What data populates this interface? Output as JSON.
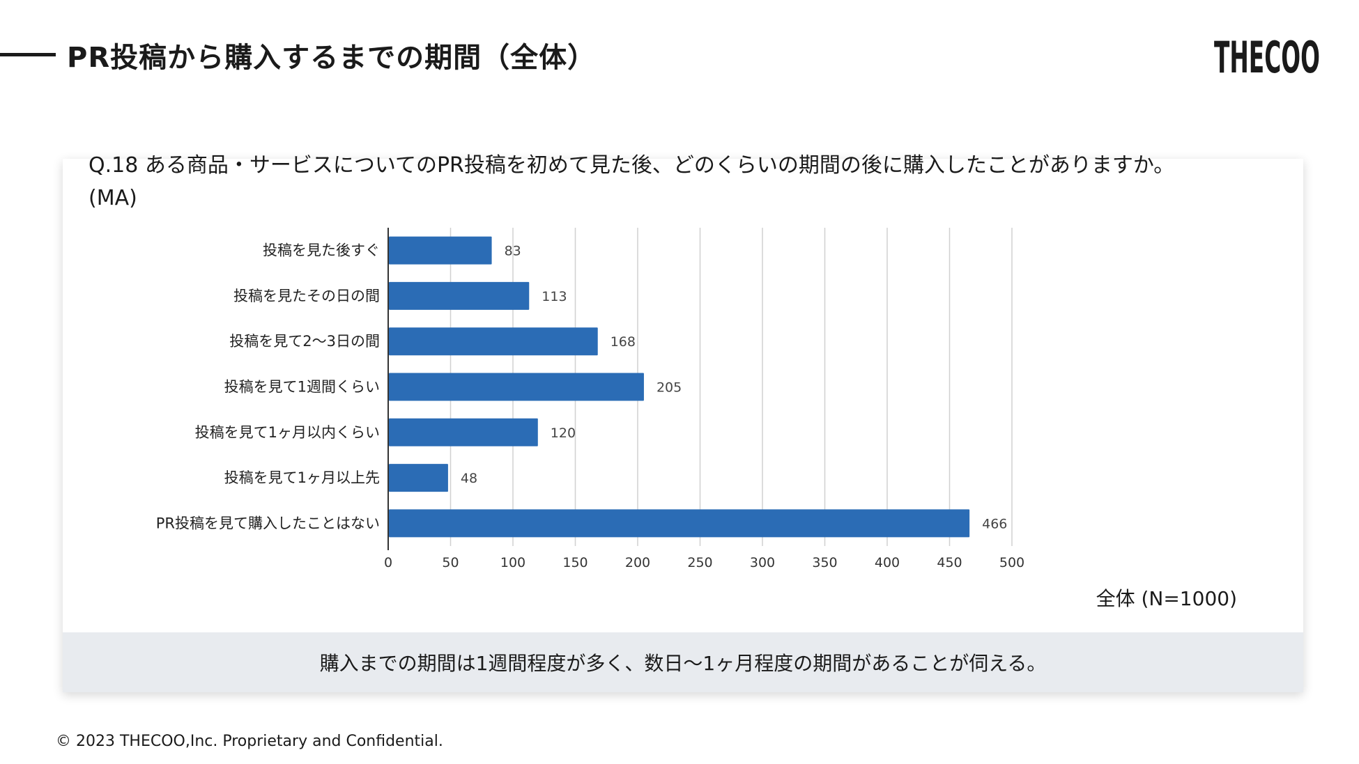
{
  "header": {
    "title": "PR投稿から購入するまでの期間（全体）",
    "logo_text": "THECOO"
  },
  "question": {
    "line1": "Q.18 ある商品・サービスについてのPR投稿を初めて見た後、どのくらいの期間の後に購入したことがありますか。",
    "line2": "(MA)"
  },
  "chart_data": {
    "type": "bar",
    "orientation": "horizontal",
    "categories": [
      "投稿を見た後すぐ",
      "投稿を見たその日の間",
      "投稿を見て2〜3日の間",
      "投稿を見て1週間くらい",
      "投稿を見て1ヶ月以内くらい",
      "投稿を見て1ヶ月以上先",
      "PR投稿を見て購入したことはない"
    ],
    "values": [
      83,
      113,
      168,
      205,
      120,
      48,
      466
    ],
    "xlim": [
      0,
      500
    ],
    "xticks": [
      "0",
      "50",
      "100",
      "150",
      "200",
      "250",
      "300",
      "350",
      "400",
      "450",
      "500"
    ],
    "subtitle": "全体 (N=1000)",
    "grid": true,
    "data_labels": true,
    "bar_color": "#2b6cb5"
  },
  "summary": "購入までの期間は1週間程度が多く、数日〜1ヶ月程度の期間があることが伺える。",
  "footer": "© 2023 THECOO,Inc. Proprietary and Confidential."
}
